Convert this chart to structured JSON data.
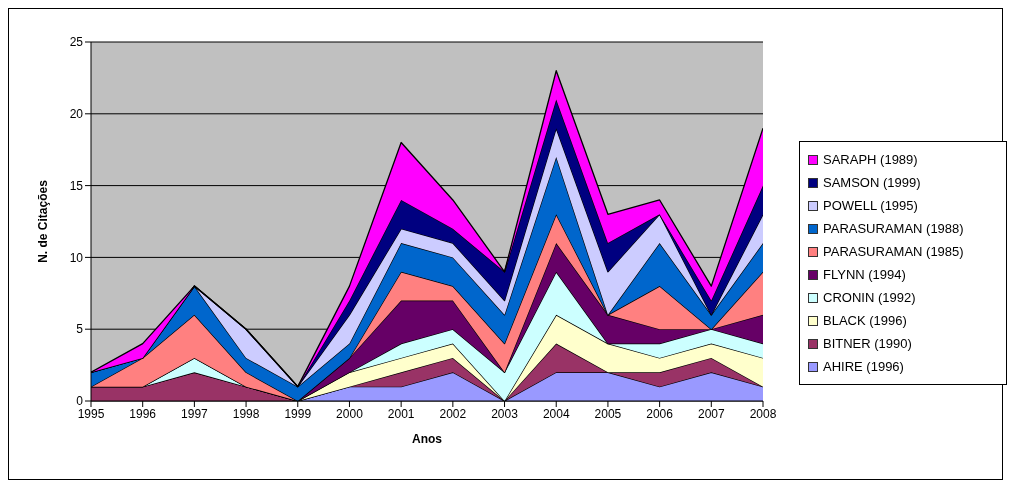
{
  "chart_data": {
    "type": "area",
    "stacked": true,
    "xlabel": "Anos",
    "ylabel": "N. de Citações",
    "categories": [
      "1995",
      "1996",
      "1997",
      "1998",
      "1999",
      "2000",
      "2001",
      "2002",
      "2003",
      "2004",
      "2005",
      "2006",
      "2007",
      "2008"
    ],
    "series": [
      {
        "name": "AHIRE (1996)",
        "color": "#9999ff",
        "values": [
          0,
          0,
          0,
          0,
          0,
          1,
          1,
          2,
          0,
          2,
          2,
          1,
          2,
          1
        ]
      },
      {
        "name": "BITNER (1990)",
        "color": "#993366",
        "values": [
          1,
          1,
          2,
          1,
          0,
          0,
          1,
          1,
          0,
          2,
          0,
          1,
          1,
          0
        ]
      },
      {
        "name": "BLACK (1996)",
        "color": "#ffffcc",
        "values": [
          0,
          0,
          0,
          0,
          0,
          1,
          1,
          1,
          0,
          2,
          2,
          1,
          1,
          2
        ]
      },
      {
        "name": "CRONIN (1992)",
        "color": "#ccffff",
        "values": [
          0,
          0,
          1,
          0,
          0,
          0,
          1,
          1,
          2,
          3,
          0,
          1,
          1,
          1
        ]
      },
      {
        "name": "FLYNN (1994)",
        "color": "#660066",
        "values": [
          0,
          0,
          0,
          0,
          0,
          1,
          3,
          2,
          0,
          2,
          2,
          1,
          0,
          2
        ]
      },
      {
        "name": "PARASURAMAN (1985)",
        "color": "#ff8080",
        "values": [
          0,
          2,
          3,
          1,
          0,
          0,
          2,
          1,
          2,
          2,
          0,
          3,
          0,
          3
        ]
      },
      {
        "name": "PARASURAMAN (1988)",
        "color": "#0066cc",
        "values": [
          1,
          0,
          2,
          1,
          1,
          1,
          2,
          2,
          2,
          4,
          0,
          3,
          1,
          2
        ]
      },
      {
        "name": "POWELL (1995)",
        "color": "#ccccff",
        "values": [
          0,
          0,
          0,
          2,
          0,
          2,
          1,
          1,
          1,
          2,
          3,
          2,
          0,
          2
        ]
      },
      {
        "name": "SAMSON (1999)",
        "color": "#000080",
        "values": [
          0,
          0,
          0,
          0,
          0,
          1,
          2,
          1,
          2,
          2,
          2,
          0,
          1,
          2
        ]
      },
      {
        "name": "SARAPH (1989)",
        "color": "#ff00ff",
        "values": [
          0,
          1,
          0,
          0,
          0,
          1,
          4,
          2,
          0,
          2,
          2,
          1,
          1,
          4
        ]
      }
    ],
    "ylim": [
      0,
      25
    ],
    "yticks": [
      0,
      5,
      10,
      15,
      20,
      25
    ],
    "grid": "y",
    "legend": "right"
  }
}
